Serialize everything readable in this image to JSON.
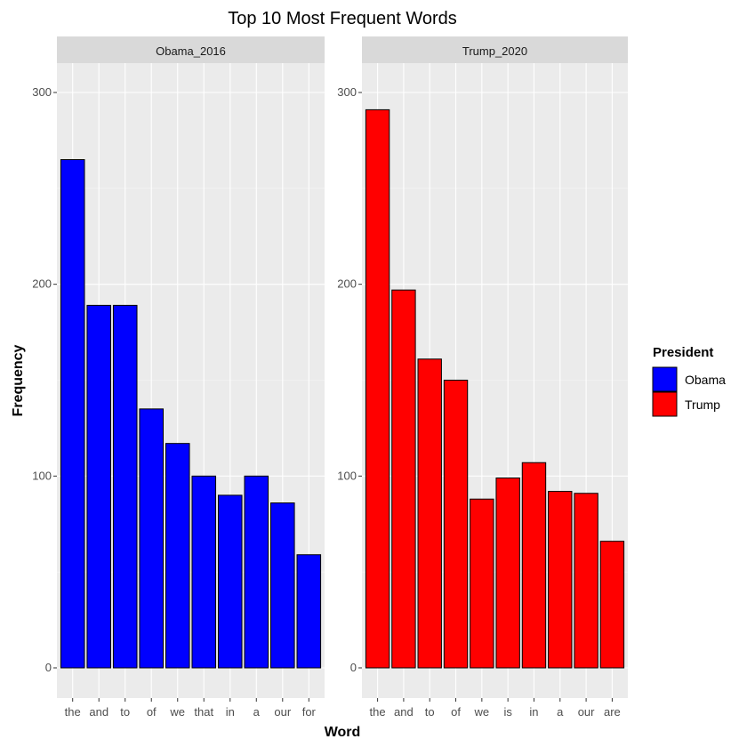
{
  "chart_data": {
    "type": "bar",
    "title": "Top 10 Most Frequent Words",
    "xlabel": "Word",
    "ylabel": "Frequency",
    "ylim": [
      0,
      300
    ],
    "yticks": [
      0,
      100,
      200,
      300
    ],
    "legend": {
      "title": "President",
      "placement": "right",
      "entries": [
        {
          "label": "Obama",
          "color": "#0000ff"
        },
        {
          "label": "Trump",
          "color": "#ff0000"
        }
      ]
    },
    "panels": [
      {
        "name": "Obama_2016",
        "color": "#0000ff",
        "categories": [
          "the",
          "and",
          "to",
          "of",
          "we",
          "that",
          "in",
          "a",
          "our",
          "for"
        ],
        "values": [
          265,
          189,
          189,
          135,
          117,
          100,
          90,
          100,
          86,
          59
        ]
      },
      {
        "name": "Trump_2020",
        "color": "#ff0000",
        "categories": [
          "the",
          "and",
          "to",
          "of",
          "we",
          "is",
          "in",
          "a",
          "our",
          "are"
        ],
        "values": [
          291,
          197,
          161,
          150,
          88,
          99,
          107,
          92,
          91,
          66
        ]
      }
    ]
  }
}
